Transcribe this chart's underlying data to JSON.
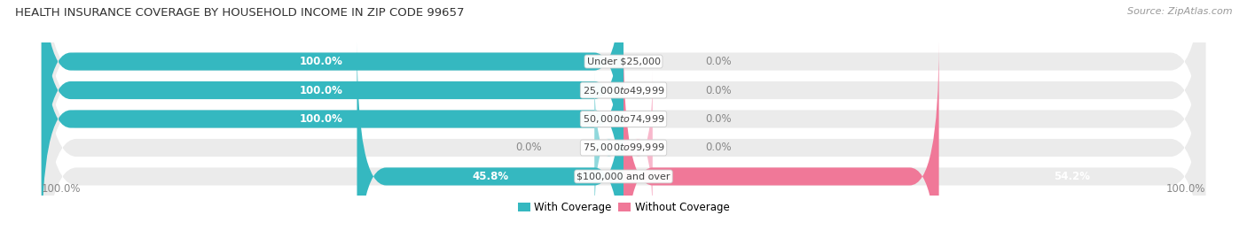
{
  "title": "HEALTH INSURANCE COVERAGE BY HOUSEHOLD INCOME IN ZIP CODE 99657",
  "source": "Source: ZipAtlas.com",
  "categories": [
    "Under $25,000",
    "$25,000 to $49,999",
    "$50,000 to $74,999",
    "$75,000 to $99,999",
    "$100,000 and over"
  ],
  "with_coverage": [
    100.0,
    100.0,
    100.0,
    0.0,
    45.8
  ],
  "without_coverage": [
    0.0,
    0.0,
    0.0,
    0.0,
    54.2
  ],
  "with_coverage_small": [
    false,
    false,
    false,
    true,
    false
  ],
  "color_with": "#35b8c0",
  "color_with_light": "#90d8dc",
  "color_without": "#f07898",
  "color_without_light": "#f8b8cc",
  "bar_bg_color": "#ebebeb",
  "bg_color": "#ffffff",
  "title_fontsize": 9.5,
  "source_fontsize": 8,
  "label_fontsize": 8.5,
  "category_fontsize": 8,
  "axis_label_fontsize": 8.5,
  "xlim_left": -105,
  "xlim_right": 105,
  "bar_height": 0.62,
  "n_rows": 5
}
